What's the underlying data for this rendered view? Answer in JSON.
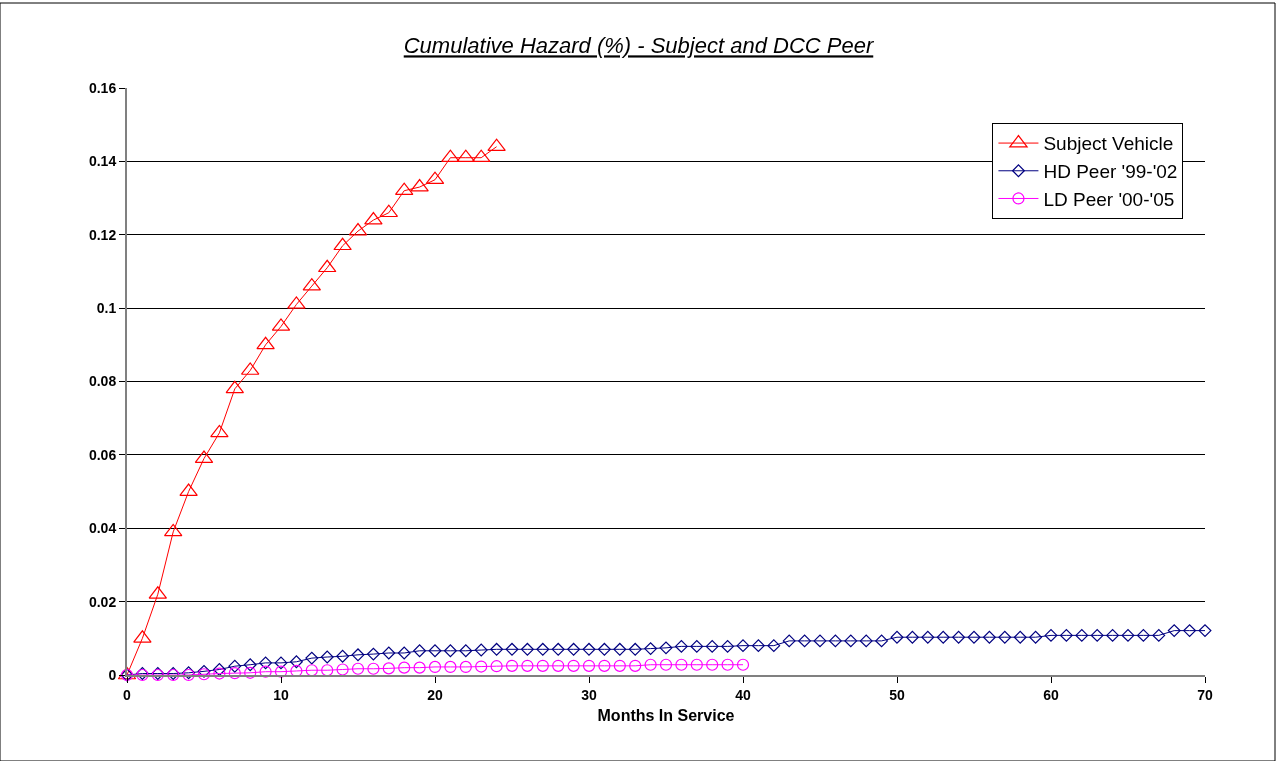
{
  "chart_data": {
    "type": "line",
    "title": "Cumulative Hazard (%) - Subject and DCC Peer",
    "xlabel": "Months In Service",
    "xlim": [
      0,
      70
    ],
    "xticks": [
      0,
      10,
      20,
      30,
      40,
      50,
      60,
      70
    ],
    "ylim": [
      0,
      0.16
    ],
    "yticks": [
      0,
      0.02,
      0.04,
      0.06,
      0.08,
      0.1,
      0.12,
      0.14,
      0.16
    ],
    "grid": "y",
    "legend": "top right",
    "line_style": "solid",
    "series": [
      {
        "name": "Subject Vehicle",
        "color": "#ff0000",
        "marker": "triangle",
        "x": [
          0,
          1,
          2,
          3,
          4,
          5,
          6,
          7,
          8,
          9,
          10,
          11,
          12,
          13,
          14,
          15,
          16,
          17,
          18,
          19,
          20,
          21,
          22,
          23,
          24
        ],
        "values": [
          0,
          0.01,
          0.022,
          0.039,
          0.05,
          0.059,
          0.066,
          0.078,
          0.083,
          0.09,
          0.095,
          0.101,
          0.106,
          0.111,
          0.117,
          0.121,
          0.124,
          0.126,
          0.132,
          0.133,
          0.135,
          0.141,
          0.141,
          0.141,
          0.144
        ]
      },
      {
        "name": "HD Peer '99-'02",
        "color": "#000080",
        "marker": "diamond",
        "x": [
          0,
          1,
          2,
          3,
          4,
          5,
          6,
          7,
          8,
          9,
          10,
          11,
          12,
          13,
          14,
          15,
          16,
          17,
          18,
          19,
          20,
          21,
          22,
          23,
          24,
          25,
          26,
          27,
          28,
          29,
          30,
          31,
          32,
          33,
          34,
          35,
          36,
          37,
          38,
          39,
          40,
          41,
          42,
          43,
          44,
          45,
          46,
          47,
          48,
          49,
          50,
          51,
          52,
          53,
          54,
          55,
          56,
          57,
          58,
          59,
          60,
          61,
          62,
          63,
          64,
          65,
          66,
          67,
          68,
          69,
          70
        ],
        "values": [
          0,
          0.0004,
          0.0004,
          0.0004,
          0.0006,
          0.001,
          0.0015,
          0.0024,
          0.0028,
          0.0033,
          0.0033,
          0.0036,
          0.0046,
          0.0049,
          0.0051,
          0.0055,
          0.0057,
          0.006,
          0.006,
          0.0066,
          0.0066,
          0.0066,
          0.0066,
          0.0068,
          0.007,
          0.007,
          0.007,
          0.007,
          0.007,
          0.007,
          0.007,
          0.007,
          0.007,
          0.007,
          0.0072,
          0.0074,
          0.0078,
          0.0078,
          0.0078,
          0.0078,
          0.008,
          0.008,
          0.008,
          0.0093,
          0.0093,
          0.0093,
          0.0093,
          0.0093,
          0.0093,
          0.0093,
          0.0103,
          0.0103,
          0.0103,
          0.0103,
          0.0103,
          0.0103,
          0.0103,
          0.0103,
          0.0103,
          0.0103,
          0.0108,
          0.0108,
          0.0108,
          0.0108,
          0.0108,
          0.0108,
          0.0108,
          0.0108,
          0.0121,
          0.0121,
          0.0121
        ]
      },
      {
        "name": "LD Peer '00-'05",
        "color": "#ff00ff",
        "marker": "circle",
        "x": [
          0,
          1,
          2,
          3,
          4,
          5,
          6,
          7,
          8,
          9,
          10,
          11,
          12,
          13,
          14,
          15,
          16,
          17,
          18,
          19,
          20,
          21,
          22,
          23,
          24,
          25,
          26,
          27,
          28,
          29,
          30,
          31,
          32,
          33,
          34,
          35,
          36,
          37,
          38,
          39,
          40
        ],
        "values": [
          0,
          0,
          0,
          0,
          0,
          0.0002,
          0.0004,
          0.0005,
          0.0006,
          0.0009,
          0.0009,
          0.0011,
          0.0013,
          0.0013,
          0.0015,
          0.0017,
          0.0017,
          0.0018,
          0.002,
          0.002,
          0.0022,
          0.0022,
          0.0022,
          0.0023,
          0.0024,
          0.0025,
          0.0025,
          0.0025,
          0.0025,
          0.0025,
          0.0025,
          0.0025,
          0.0025,
          0.0025,
          0.0028,
          0.0028,
          0.0028,
          0.0028,
          0.0028,
          0.0028,
          0.0028
        ]
      }
    ]
  }
}
